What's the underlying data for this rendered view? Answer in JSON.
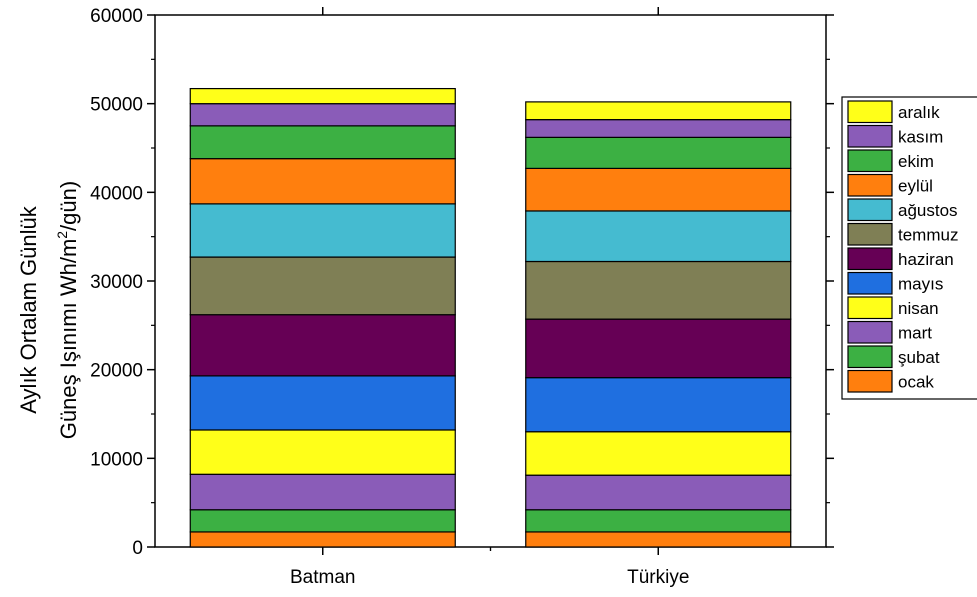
{
  "chart_data": {
    "type": "bar",
    "stacked": true,
    "categories": [
      "Batman",
      "Türkiye"
    ],
    "ylabel_line1": "Aylık Ortalam Günlük",
    "ylabel_line2_prefix": "Güneş Işınımı Wh/m",
    "ylabel_line2_sup": "2",
    "ylabel_line2_suffix": "/gün)",
    "ylim": [
      0,
      60000
    ],
    "yticks": [
      0,
      10000,
      20000,
      30000,
      40000,
      50000,
      60000
    ],
    "legend_position": "right",
    "series": [
      {
        "name": "ocak",
        "color": "#FF7F0E",
        "values": [
          1700,
          1700
        ]
      },
      {
        "name": "şubat",
        "color": "#3CB043",
        "values": [
          2500,
          2500
        ]
      },
      {
        "name": "mart",
        "color": "#8A5CB8",
        "values": [
          4000,
          3900
        ]
      },
      {
        "name": "nisan",
        "color": "#FFFF19",
        "values": [
          5000,
          4900
        ]
      },
      {
        "name": "mayıs",
        "color": "#1F6FE0",
        "values": [
          6100,
          6100
        ]
      },
      {
        "name": "haziran",
        "color": "#660055",
        "values": [
          6900,
          6600
        ]
      },
      {
        "name": "temmuz",
        "color": "#7F7F55",
        "values": [
          6500,
          6500
        ]
      },
      {
        "name": "ağustos",
        "color": "#45BBD0",
        "values": [
          6000,
          5700
        ]
      },
      {
        "name": "eylül",
        "color": "#FF7F0E",
        "values": [
          5100,
          4800
        ]
      },
      {
        "name": "ekim",
        "color": "#3CB043",
        "values": [
          3700,
          3500
        ]
      },
      {
        "name": "kasım",
        "color": "#8A5CB8",
        "values": [
          2500,
          2000
        ]
      },
      {
        "name": "aralık",
        "color": "#FFFF19",
        "values": [
          1700,
          2000
        ]
      }
    ]
  }
}
